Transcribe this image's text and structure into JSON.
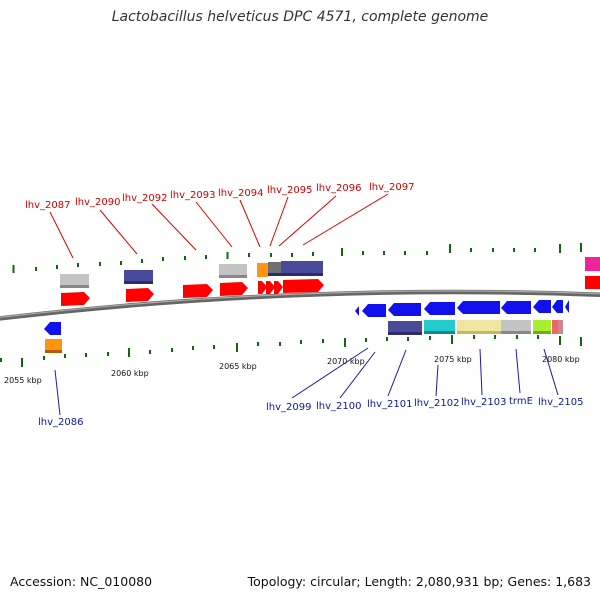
{
  "title": "Lactobacillus helveticus DPC 4571, complete genome",
  "footer": {
    "accession": "Accession: NC_010080",
    "summary": "Topology: circular; Length: 2,080,931 bp; Genes: 1,683"
  },
  "colors": {
    "forward_gene": "#ff0000",
    "reverse_gene": "#1111ee",
    "label_forward": "#cc0000",
    "label_reverse": "#0a1a99",
    "tick": "#116611",
    "backbone": "#777777"
  },
  "scale_labels": [
    "2055 kbp",
    "2060 kbp",
    "2065 kbp",
    "2070 kbp",
    "2075 kbp",
    "2080 kbp"
  ],
  "top_labels": [
    "lhv_2087",
    "lhv_2090",
    "lhv_2092",
    "lhv_2093",
    "lhv_2094",
    "lhv_2095",
    "lhv_2096",
    "lhv_2097"
  ],
  "bottom_labels": [
    "lhv_2086",
    "lhv_2099",
    "lhv_2100",
    "lhv_2101",
    "lhv_2102",
    "lhv_2103",
    "trmE",
    "lhv_2105"
  ]
}
